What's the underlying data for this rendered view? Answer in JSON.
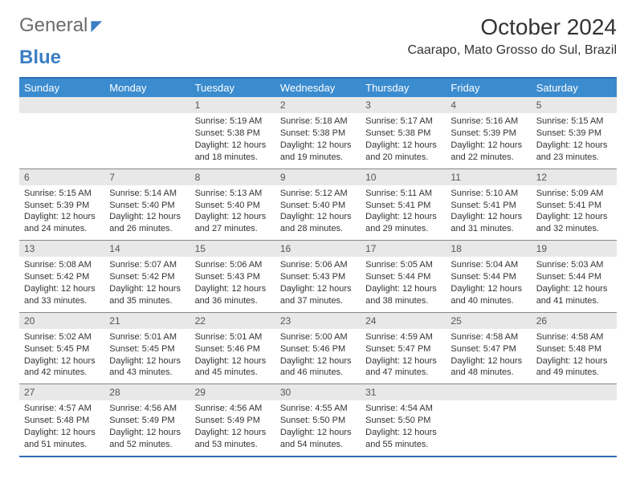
{
  "logo": {
    "general": "General",
    "blue": "Blue"
  },
  "title": "October 2024",
  "location": "Caarapo, Mato Grosso do Sul, Brazil",
  "dayHeaders": [
    "Sunday",
    "Monday",
    "Tuesday",
    "Wednesday",
    "Thursday",
    "Friday",
    "Saturday"
  ],
  "colors": {
    "headerBar": "#3b8ccf",
    "borderTop": "#2c6fb3",
    "dayNumBg": "#e8e8e8",
    "text": "#333333",
    "logoBlue": "#3b7fc4",
    "logoGrey": "#6b6b6b"
  },
  "weeks": [
    [
      {
        "n": "",
        "sunrise": "",
        "sunset": "",
        "daylight": ""
      },
      {
        "n": "",
        "sunrise": "",
        "sunset": "",
        "daylight": ""
      },
      {
        "n": "1",
        "sunrise": "Sunrise: 5:19 AM",
        "sunset": "Sunset: 5:38 PM",
        "daylight": "Daylight: 12 hours and 18 minutes."
      },
      {
        "n": "2",
        "sunrise": "Sunrise: 5:18 AM",
        "sunset": "Sunset: 5:38 PM",
        "daylight": "Daylight: 12 hours and 19 minutes."
      },
      {
        "n": "3",
        "sunrise": "Sunrise: 5:17 AM",
        "sunset": "Sunset: 5:38 PM",
        "daylight": "Daylight: 12 hours and 20 minutes."
      },
      {
        "n": "4",
        "sunrise": "Sunrise: 5:16 AM",
        "sunset": "Sunset: 5:39 PM",
        "daylight": "Daylight: 12 hours and 22 minutes."
      },
      {
        "n": "5",
        "sunrise": "Sunrise: 5:15 AM",
        "sunset": "Sunset: 5:39 PM",
        "daylight": "Daylight: 12 hours and 23 minutes."
      }
    ],
    [
      {
        "n": "6",
        "sunrise": "Sunrise: 5:15 AM",
        "sunset": "Sunset: 5:39 PM",
        "daylight": "Daylight: 12 hours and 24 minutes."
      },
      {
        "n": "7",
        "sunrise": "Sunrise: 5:14 AM",
        "sunset": "Sunset: 5:40 PM",
        "daylight": "Daylight: 12 hours and 26 minutes."
      },
      {
        "n": "8",
        "sunrise": "Sunrise: 5:13 AM",
        "sunset": "Sunset: 5:40 PM",
        "daylight": "Daylight: 12 hours and 27 minutes."
      },
      {
        "n": "9",
        "sunrise": "Sunrise: 5:12 AM",
        "sunset": "Sunset: 5:40 PM",
        "daylight": "Daylight: 12 hours and 28 minutes."
      },
      {
        "n": "10",
        "sunrise": "Sunrise: 5:11 AM",
        "sunset": "Sunset: 5:41 PM",
        "daylight": "Daylight: 12 hours and 29 minutes."
      },
      {
        "n": "11",
        "sunrise": "Sunrise: 5:10 AM",
        "sunset": "Sunset: 5:41 PM",
        "daylight": "Daylight: 12 hours and 31 minutes."
      },
      {
        "n": "12",
        "sunrise": "Sunrise: 5:09 AM",
        "sunset": "Sunset: 5:41 PM",
        "daylight": "Daylight: 12 hours and 32 minutes."
      }
    ],
    [
      {
        "n": "13",
        "sunrise": "Sunrise: 5:08 AM",
        "sunset": "Sunset: 5:42 PM",
        "daylight": "Daylight: 12 hours and 33 minutes."
      },
      {
        "n": "14",
        "sunrise": "Sunrise: 5:07 AM",
        "sunset": "Sunset: 5:42 PM",
        "daylight": "Daylight: 12 hours and 35 minutes."
      },
      {
        "n": "15",
        "sunrise": "Sunrise: 5:06 AM",
        "sunset": "Sunset: 5:43 PM",
        "daylight": "Daylight: 12 hours and 36 minutes."
      },
      {
        "n": "16",
        "sunrise": "Sunrise: 5:06 AM",
        "sunset": "Sunset: 5:43 PM",
        "daylight": "Daylight: 12 hours and 37 minutes."
      },
      {
        "n": "17",
        "sunrise": "Sunrise: 5:05 AM",
        "sunset": "Sunset: 5:44 PM",
        "daylight": "Daylight: 12 hours and 38 minutes."
      },
      {
        "n": "18",
        "sunrise": "Sunrise: 5:04 AM",
        "sunset": "Sunset: 5:44 PM",
        "daylight": "Daylight: 12 hours and 40 minutes."
      },
      {
        "n": "19",
        "sunrise": "Sunrise: 5:03 AM",
        "sunset": "Sunset: 5:44 PM",
        "daylight": "Daylight: 12 hours and 41 minutes."
      }
    ],
    [
      {
        "n": "20",
        "sunrise": "Sunrise: 5:02 AM",
        "sunset": "Sunset: 5:45 PM",
        "daylight": "Daylight: 12 hours and 42 minutes."
      },
      {
        "n": "21",
        "sunrise": "Sunrise: 5:01 AM",
        "sunset": "Sunset: 5:45 PM",
        "daylight": "Daylight: 12 hours and 43 minutes."
      },
      {
        "n": "22",
        "sunrise": "Sunrise: 5:01 AM",
        "sunset": "Sunset: 5:46 PM",
        "daylight": "Daylight: 12 hours and 45 minutes."
      },
      {
        "n": "23",
        "sunrise": "Sunrise: 5:00 AM",
        "sunset": "Sunset: 5:46 PM",
        "daylight": "Daylight: 12 hours and 46 minutes."
      },
      {
        "n": "24",
        "sunrise": "Sunrise: 4:59 AM",
        "sunset": "Sunset: 5:47 PM",
        "daylight": "Daylight: 12 hours and 47 minutes."
      },
      {
        "n": "25",
        "sunrise": "Sunrise: 4:58 AM",
        "sunset": "Sunset: 5:47 PM",
        "daylight": "Daylight: 12 hours and 48 minutes."
      },
      {
        "n": "26",
        "sunrise": "Sunrise: 4:58 AM",
        "sunset": "Sunset: 5:48 PM",
        "daylight": "Daylight: 12 hours and 49 minutes."
      }
    ],
    [
      {
        "n": "27",
        "sunrise": "Sunrise: 4:57 AM",
        "sunset": "Sunset: 5:48 PM",
        "daylight": "Daylight: 12 hours and 51 minutes."
      },
      {
        "n": "28",
        "sunrise": "Sunrise: 4:56 AM",
        "sunset": "Sunset: 5:49 PM",
        "daylight": "Daylight: 12 hours and 52 minutes."
      },
      {
        "n": "29",
        "sunrise": "Sunrise: 4:56 AM",
        "sunset": "Sunset: 5:49 PM",
        "daylight": "Daylight: 12 hours and 53 minutes."
      },
      {
        "n": "30",
        "sunrise": "Sunrise: 4:55 AM",
        "sunset": "Sunset: 5:50 PM",
        "daylight": "Daylight: 12 hours and 54 minutes."
      },
      {
        "n": "31",
        "sunrise": "Sunrise: 4:54 AM",
        "sunset": "Sunset: 5:50 PM",
        "daylight": "Daylight: 12 hours and 55 minutes."
      },
      {
        "n": "",
        "sunrise": "",
        "sunset": "",
        "daylight": ""
      },
      {
        "n": "",
        "sunrise": "",
        "sunset": "",
        "daylight": ""
      }
    ]
  ]
}
